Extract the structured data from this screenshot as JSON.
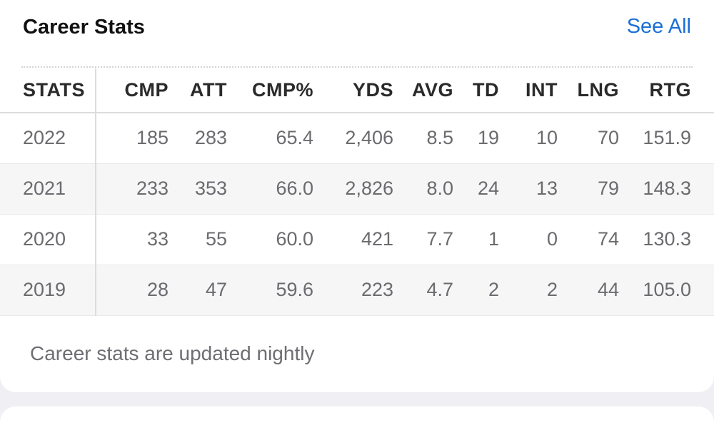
{
  "header": {
    "title": "Career Stats",
    "see_all_label": "See All"
  },
  "table": {
    "columns": [
      "STATS",
      "CMP",
      "ATT",
      "CMP%",
      "YDS",
      "AVG",
      "TD",
      "INT",
      "LNG",
      "RTG"
    ],
    "rows": [
      [
        "2022",
        "185",
        "283",
        "65.4",
        "2,406",
        "8.5",
        "19",
        "10",
        "70",
        "151.9"
      ],
      [
        "2021",
        "233",
        "353",
        "66.0",
        "2,826",
        "8.0",
        "24",
        "13",
        "79",
        "148.3"
      ],
      [
        "2020",
        "33",
        "55",
        "60.0",
        "421",
        "7.7",
        "1",
        "0",
        "74",
        "130.3"
      ],
      [
        "2019",
        "28",
        "47",
        "59.6",
        "223",
        "4.7",
        "2",
        "2",
        "44",
        "105.0"
      ]
    ]
  },
  "footer": {
    "note": "Career stats are updated nightly"
  },
  "colors": {
    "accent": "#1a6fd6",
    "background": "#efeff4",
    "card": "#ffffff",
    "row_alt": "#f6f6f7"
  }
}
